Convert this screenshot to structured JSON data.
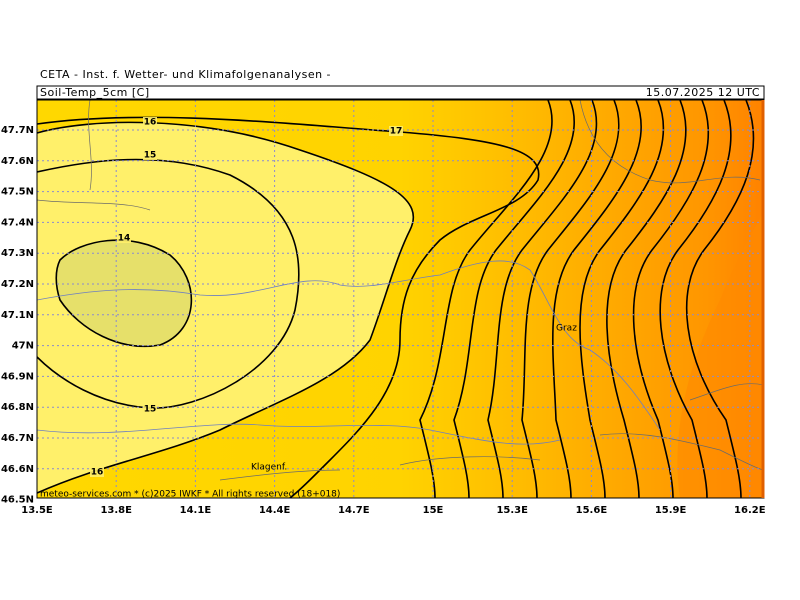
{
  "header": {
    "title": "CETA - Inst. f. Wetter- und Klimafolgenanalysen -",
    "parameter": "Soil-Temp_5cm [C]",
    "valid_time": "15.07.2025 12 UTC"
  },
  "map": {
    "lat_labels": [
      "47.7N",
      "47.6N",
      "47.5N",
      "47.4N",
      "47.3N",
      "47.2N",
      "47.1N",
      "47N",
      "46.9N",
      "46.8N",
      "46.7N",
      "46.6N",
      "46.5N"
    ],
    "lon_labels": [
      "13.5E",
      "13.8E",
      "14.1E",
      "14.4E",
      "14.7E",
      "15E",
      "15.3E",
      "15.6E",
      "15.9E",
      "16.2E"
    ],
    "contour_labels": [
      "16",
      "15",
      "14",
      "17",
      "15",
      "16"
    ],
    "places": [
      "Graz",
      "Klagenf."
    ],
    "footer": "meteo-services.com * (c)2025 IWKF * All rights reserved (18+018)"
  }
}
